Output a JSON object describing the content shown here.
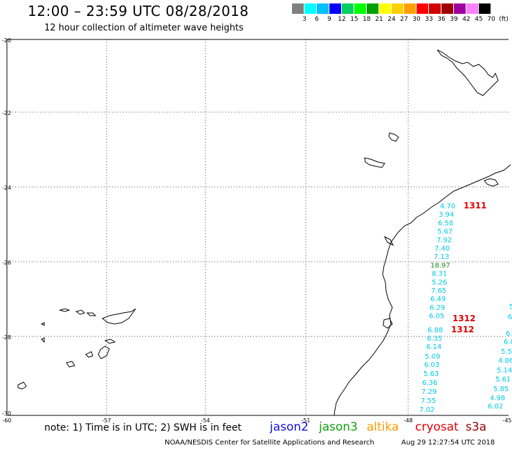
{
  "header": {
    "title": "12:00 – 23:59 UTC 08/28/2018",
    "subtitle": "12 hour collection of altimeter wave heights"
  },
  "legend": {
    "swatches": [
      {
        "color": "#808080"
      },
      {
        "color": "#00ffff"
      },
      {
        "color": "#00c0ff"
      },
      {
        "color": "#0000ff"
      },
      {
        "color": "#00d060"
      },
      {
        "color": "#00ff00"
      },
      {
        "color": "#00a000"
      },
      {
        "color": "#ffff00"
      },
      {
        "color": "#ffd000"
      },
      {
        "color": "#ffa000"
      },
      {
        "color": "#ff0000"
      },
      {
        "color": "#d00000"
      },
      {
        "color": "#a00000"
      },
      {
        "color": "#a000a0"
      },
      {
        "color": "#ff80ff"
      },
      {
        "color": "#000000"
      }
    ],
    "labels": [
      "3",
      "6",
      "9",
      "12",
      "15",
      "18",
      "21",
      "24",
      "27",
      "30",
      "33",
      "36",
      "39",
      "42",
      "45",
      "70",
      "(ft)"
    ]
  },
  "axes": {
    "lat_labels": [
      "-20",
      "-22",
      "-24",
      "-26",
      "-28",
      "-30"
    ],
    "lon_labels": [
      "-60",
      "-57",
      "-54",
      "-51",
      "-48",
      "-45"
    ]
  },
  "colors": {
    "cyan": "#00c8e8",
    "green": "#208a20",
    "red": "#e00000",
    "jason2": "#1010e0",
    "jason3": "#10a010",
    "altika": "#ff9a00",
    "cryosat": "#e00000",
    "s3a": "#900000"
  },
  "track_a": {
    "times": [
      {
        "text": "1311"
      }
    ],
    "values": [
      {
        "text": "4.70",
        "c": "cyan"
      },
      {
        "text": "3.94",
        "c": "cyan"
      },
      {
        "text": "6.58",
        "c": "cyan"
      },
      {
        "text": "5.67",
        "c": "cyan"
      },
      {
        "text": "7.92",
        "c": "cyan"
      },
      {
        "text": "7.40",
        "c": "cyan"
      },
      {
        "text": "7.13",
        "c": "cyan"
      },
      {
        "text": "18.97",
        "c": "green"
      },
      {
        "text": "8.31",
        "c": "cyan"
      },
      {
        "text": "5.26",
        "c": "cyan"
      },
      {
        "text": "7.65",
        "c": "cyan"
      },
      {
        "text": "6.49",
        "c": "cyan"
      },
      {
        "text": "6.29",
        "c": "cyan"
      },
      {
        "text": "6.05",
        "c": "cyan"
      }
    ]
  },
  "track_b": {
    "times": [
      {
        "text": "1312"
      },
      {
        "text": "1312"
      }
    ],
    "values": [
      {
        "text": "6.88",
        "c": "cyan"
      },
      {
        "text": "6.35",
        "c": "cyan"
      },
      {
        "text": "6.14",
        "c": "cyan"
      },
      {
        "text": "5.09",
        "c": "cyan"
      },
      {
        "text": "6.03",
        "c": "cyan"
      },
      {
        "text": "5.63",
        "c": "cyan"
      },
      {
        "text": "6.36",
        "c": "cyan"
      },
      {
        "text": "7.29",
        "c": "cyan"
      },
      {
        "text": "7.55",
        "c": "cyan"
      },
      {
        "text": "7.02",
        "c": "cyan"
      }
    ]
  },
  "track_c": {
    "values": [
      {
        "text": "5"
      },
      {
        "text": "6"
      },
      {
        "text": "6."
      },
      {
        "text": "6.0"
      },
      {
        "text": "5.5"
      },
      {
        "text": "4.86"
      },
      {
        "text": "5.14"
      },
      {
        "text": "5.61"
      },
      {
        "text": "5.85"
      },
      {
        "text": "4.98"
      },
      {
        "text": "6.02"
      }
    ]
  },
  "footer": {
    "note": "note: 1) Time is in UTC; 2) SWH is in feet",
    "satellites": [
      "jason2",
      "jason3",
      "altika",
      "cryosat",
      "s3a"
    ],
    "credit": "NOAA/NESDIS Center for Satellite Applications and Research",
    "timestamp": "Aug 29 12:27:54 UTC 2018"
  }
}
